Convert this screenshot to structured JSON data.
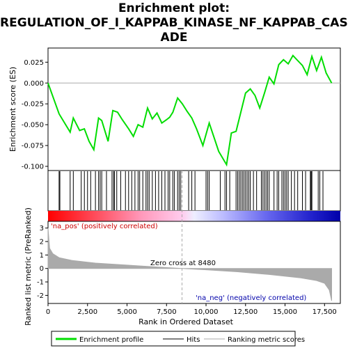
{
  "title_lines": [
    "Enrichment plot:",
    "REGULATION_OF_I_KAPPAB_KINASE_NF_KAPPAB_CASC",
    "ADE"
  ],
  "colors": {
    "enrichment_line": "#00dd00",
    "hits": "#000000",
    "metric_fill": "#aaaaaa",
    "zero_line": "#aaaaaa",
    "pos_label": "#cc0000",
    "neg_label": "#0000aa"
  },
  "chart_data": [
    {
      "type": "line",
      "name": "enrichment-score-panel",
      "ylabel": "Enrichment score (ES)",
      "xlim": [
        0,
        18500
      ],
      "ylim": [
        -0.105,
        0.042
      ],
      "yticks": [
        0.025,
        0.0,
        -0.025,
        -0.05,
        -0.075,
        -0.1
      ],
      "ytick_labels": [
        "0.025",
        "0.000",
        "-0.025",
        "-0.050",
        "-0.075",
        "-0.100"
      ],
      "series": [
        {
          "name": "Enrichment profile",
          "x": [
            0,
            700,
            1400,
            1600,
            2000,
            2300,
            2600,
            2900,
            3200,
            3400,
            3800,
            4100,
            4400,
            4700,
            5100,
            5400,
            5700,
            6000,
            6300,
            6600,
            6900,
            7200,
            7500,
            7700,
            7900,
            8200,
            8500,
            8800,
            9100,
            9400,
            9800,
            10200,
            10500,
            10800,
            11300,
            11600,
            11900,
            12200,
            12500,
            12800,
            13100,
            13400,
            13700,
            14000,
            14300,
            14600,
            14900,
            15200,
            15500,
            15800,
            16100,
            16400,
            16700,
            17000,
            17300,
            17600,
            17950
          ],
          "y": [
            0.0,
            -0.037,
            -0.059,
            -0.042,
            -0.057,
            -0.055,
            -0.07,
            -0.08,
            -0.042,
            -0.045,
            -0.07,
            -0.033,
            -0.035,
            -0.044,
            -0.055,
            -0.064,
            -0.05,
            -0.053,
            -0.03,
            -0.043,
            -0.036,
            -0.048,
            -0.044,
            -0.041,
            -0.035,
            -0.018,
            -0.025,
            -0.034,
            -0.042,
            -0.055,
            -0.075,
            -0.048,
            -0.065,
            -0.082,
            -0.098,
            -0.06,
            -0.058,
            -0.035,
            -0.012,
            -0.007,
            -0.015,
            -0.03,
            -0.012,
            0.007,
            -0.001,
            0.022,
            0.028,
            0.023,
            0.033,
            0.027,
            0.021,
            0.01,
            0.032,
            0.015,
            0.031,
            0.012,
            0.0
          ]
        }
      ],
      "hits": [
        700,
        750,
        1400,
        1600,
        2100,
        2300,
        2500,
        2700,
        3000,
        3200,
        3300,
        3400,
        3700,
        4050,
        4150,
        4200,
        4350,
        4600,
        4900,
        5100,
        5300,
        5500,
        5700,
        5800,
        6000,
        6200,
        6300,
        6400,
        6600,
        6800,
        7000,
        7200,
        7400,
        7600,
        7700,
        7900,
        8000,
        8200,
        8300,
        8400,
        8900,
        9100,
        9300,
        10000,
        10100,
        10200,
        10900,
        11200,
        11300,
        11500,
        11900,
        12000,
        12100,
        12200,
        12300,
        12400,
        12500,
        12600,
        12700,
        12800,
        13000,
        13200,
        13500,
        13600,
        13700,
        13800,
        13900,
        14000,
        14300,
        14500,
        14600,
        14800,
        14900,
        15000,
        15100,
        15200,
        15400,
        15600,
        15800,
        16100,
        16300,
        16600,
        16650,
        16700,
        17100,
        17200,
        17400
      ]
    },
    {
      "type": "area",
      "name": "ranked-metric-panel",
      "xlabel": "Rank in Ordered Dataset",
      "ylabel": "Ranked list metric (PreRanked)",
      "xlim": [
        0,
        18500
      ],
      "ylim": [
        -2.6,
        3.5
      ],
      "yticks": [
        3,
        2,
        1,
        0,
        -1,
        -2
      ],
      "xticks": [
        0,
        2500,
        5000,
        7500,
        10000,
        12500,
        15000,
        17500
      ],
      "xtick_labels": [
        "0",
        "2,500",
        "5,000",
        "7,500",
        "10,000",
        "12,500",
        "15,000",
        "17,500"
      ],
      "x": [
        0,
        100,
        300,
        700,
        1500,
        3000,
        5000,
        7000,
        8480,
        10000,
        12000,
        14000,
        16000,
        17000,
        17500,
        17800,
        17950
      ],
      "values": [
        3.0,
        1.5,
        1.1,
        0.8,
        0.6,
        0.4,
        0.25,
        0.1,
        0.0,
        -0.1,
        -0.25,
        -0.45,
        -0.7,
        -0.9,
        -1.1,
        -1.6,
        -2.4
      ],
      "zero_cross": 8480
    }
  ],
  "annotations": {
    "pos_label": "'na_pos' (positively correlated)",
    "neg_label": "'na_neg' (negatively correlated)",
    "zero_cross_label": "Zero cross at 8480"
  },
  "legend": {
    "items": [
      {
        "label": "Enrichment profile",
        "color": "#00dd00"
      },
      {
        "label": "Hits",
        "color": "#000000"
      },
      {
        "label": "Ranking metric scores",
        "color": "#aaaaaa"
      }
    ]
  }
}
